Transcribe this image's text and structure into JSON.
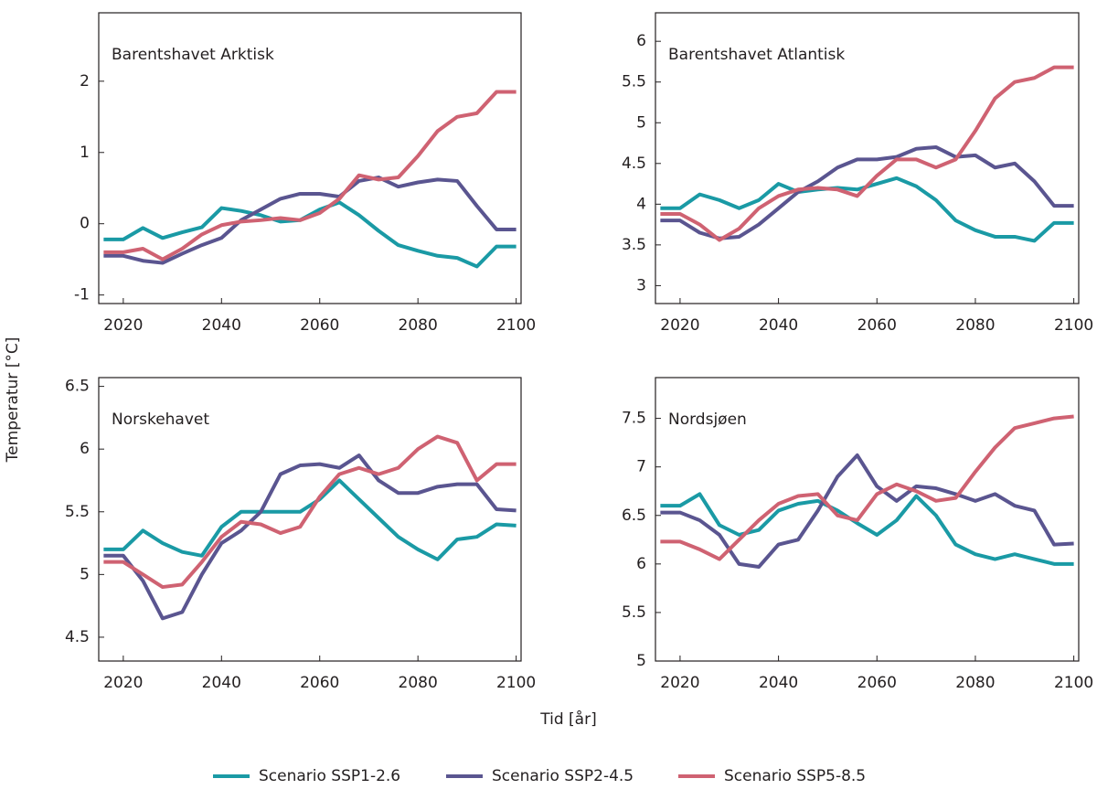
{
  "figure": {
    "xlabel": "Tid [år]",
    "ylabel": "Temperatur [°C]"
  },
  "chart_data": [
    {
      "type": "line",
      "title": "Barentshavet Arktisk",
      "x": [
        2016,
        2020,
        2024,
        2028,
        2032,
        2036,
        2040,
        2044,
        2048,
        2052,
        2056,
        2060,
        2064,
        2068,
        2072,
        2076,
        2080,
        2084,
        2088,
        2092,
        2096,
        2100
      ],
      "xlim": [
        2015,
        2101
      ],
      "xticks": [
        2020,
        2040,
        2060,
        2080,
        2100
      ],
      "ylim": [
        -1.12,
        2.96
      ],
      "yticks": [
        -1,
        0,
        1,
        2
      ],
      "series": [
        {
          "name": "Scenario SSP1-2.6",
          "color": "#1a9aa5",
          "values": [
            -0.22,
            -0.22,
            -0.06,
            -0.2,
            -0.12,
            -0.05,
            0.22,
            0.18,
            0.12,
            0.03,
            0.05,
            0.2,
            0.3,
            0.12,
            -0.1,
            -0.3,
            -0.38,
            -0.45,
            -0.48,
            -0.6,
            -0.32,
            -0.32
          ]
        },
        {
          "name": "Scenario SSP2-4.5",
          "color": "#5a5590",
          "values": [
            -0.45,
            -0.45,
            -0.52,
            -0.55,
            -0.42,
            -0.3,
            -0.2,
            0.05,
            0.2,
            0.35,
            0.42,
            0.42,
            0.38,
            0.6,
            0.65,
            0.52,
            0.58,
            0.62,
            0.6,
            0.25,
            -0.08,
            -0.08
          ]
        },
        {
          "name": "Scenario SSP5-8.5",
          "color": "#cf6272",
          "values": [
            -0.4,
            -0.4,
            -0.35,
            -0.5,
            -0.35,
            -0.15,
            -0.02,
            0.03,
            0.05,
            0.08,
            0.05,
            0.15,
            0.35,
            0.68,
            0.62,
            0.65,
            0.95,
            1.3,
            1.5,
            1.55,
            1.85,
            1.85
          ]
        }
      ]
    },
    {
      "type": "line",
      "title": "Barentshavet Atlantisk",
      "x": [
        2016,
        2020,
        2024,
        2028,
        2032,
        2036,
        2040,
        2044,
        2048,
        2052,
        2056,
        2060,
        2064,
        2068,
        2072,
        2076,
        2080,
        2084,
        2088,
        2092,
        2096,
        2100
      ],
      "xlim": [
        2015,
        2101
      ],
      "xticks": [
        2020,
        2040,
        2060,
        2080,
        2100
      ],
      "ylim": [
        2.78,
        6.35
      ],
      "yticks": [
        3,
        3.5,
        4,
        4.5,
        5,
        5.5,
        6
      ],
      "series": [
        {
          "name": "Scenario SSP1-2.6",
          "color": "#1a9aa5",
          "values": [
            3.95,
            3.95,
            4.12,
            4.05,
            3.95,
            4.05,
            4.25,
            4.15,
            4.18,
            4.2,
            4.18,
            4.25,
            4.32,
            4.22,
            4.05,
            3.8,
            3.68,
            3.6,
            3.6,
            3.55,
            3.77,
            3.77
          ]
        },
        {
          "name": "Scenario SSP2-4.5",
          "color": "#5a5590",
          "values": [
            3.8,
            3.8,
            3.65,
            3.58,
            3.6,
            3.75,
            3.95,
            4.15,
            4.28,
            4.45,
            4.55,
            4.55,
            4.58,
            4.68,
            4.7,
            4.58,
            4.6,
            4.45,
            4.5,
            4.28,
            3.98,
            3.98
          ]
        },
        {
          "name": "Scenario SSP5-8.5",
          "color": "#cf6272",
          "values": [
            3.88,
            3.88,
            3.75,
            3.56,
            3.7,
            3.95,
            4.1,
            4.18,
            4.2,
            4.18,
            4.1,
            4.35,
            4.55,
            4.55,
            4.45,
            4.55,
            4.9,
            5.3,
            5.5,
            5.55,
            5.68,
            5.68
          ]
        }
      ]
    },
    {
      "type": "line",
      "title": "Norskehavet",
      "x": [
        2016,
        2020,
        2024,
        2028,
        2032,
        2036,
        2040,
        2044,
        2048,
        2052,
        2056,
        2060,
        2064,
        2068,
        2072,
        2076,
        2080,
        2084,
        2088,
        2092,
        2096,
        2100
      ],
      "xlim": [
        2015,
        2101
      ],
      "xticks": [
        2020,
        2040,
        2060,
        2080,
        2100
      ],
      "ylim": [
        4.31,
        6.57
      ],
      "yticks": [
        4.5,
        5,
        5.5,
        6,
        6.5
      ],
      "series": [
        {
          "name": "Scenario SSP1-2.6",
          "color": "#1a9aa5",
          "values": [
            5.2,
            5.2,
            5.35,
            5.25,
            5.18,
            5.15,
            5.38,
            5.5,
            5.5,
            5.5,
            5.5,
            5.6,
            5.75,
            5.6,
            5.45,
            5.3,
            5.2,
            5.12,
            5.28,
            5.3,
            5.4,
            5.39
          ]
        },
        {
          "name": "Scenario SSP2-4.5",
          "color": "#5a5590",
          "values": [
            5.15,
            5.15,
            4.95,
            4.65,
            4.7,
            5.0,
            5.25,
            5.35,
            5.5,
            5.8,
            5.87,
            5.88,
            5.85,
            5.95,
            5.75,
            5.65,
            5.65,
            5.7,
            5.72,
            5.72,
            5.52,
            5.51
          ]
        },
        {
          "name": "Scenario SSP5-8.5",
          "color": "#cf6272",
          "values": [
            5.1,
            5.1,
            5.0,
            4.9,
            4.92,
            5.1,
            5.3,
            5.42,
            5.4,
            5.33,
            5.38,
            5.62,
            5.8,
            5.85,
            5.8,
            5.85,
            6.0,
            6.1,
            6.05,
            5.75,
            5.88,
            5.88
          ]
        }
      ]
    },
    {
      "type": "line",
      "title": "Nordsjøen",
      "x": [
        2016,
        2020,
        2024,
        2028,
        2032,
        2036,
        2040,
        2044,
        2048,
        2052,
        2056,
        2060,
        2064,
        2068,
        2072,
        2076,
        2080,
        2084,
        2088,
        2092,
        2096,
        2100
      ],
      "xlim": [
        2015,
        2101
      ],
      "xticks": [
        2020,
        2040,
        2060,
        2080,
        2100
      ],
      "ylim": [
        5,
        7.92
      ],
      "yticks": [
        5,
        5.5,
        6,
        6.5,
        7,
        7.5
      ],
      "series": [
        {
          "name": "Scenario SSP1-2.6",
          "color": "#1a9aa5",
          "values": [
            6.6,
            6.6,
            6.72,
            6.4,
            6.3,
            6.35,
            6.55,
            6.62,
            6.65,
            6.55,
            6.42,
            6.3,
            6.45,
            6.7,
            6.5,
            6.2,
            6.1,
            6.05,
            6.1,
            6.05,
            6.0,
            6.0
          ]
        },
        {
          "name": "Scenario SSP2-4.5",
          "color": "#5a5590",
          "values": [
            6.53,
            6.53,
            6.45,
            6.3,
            6.0,
            5.97,
            6.2,
            6.25,
            6.55,
            6.9,
            7.12,
            6.8,
            6.65,
            6.8,
            6.78,
            6.72,
            6.65,
            6.72,
            6.6,
            6.55,
            6.2,
            6.21
          ]
        },
        {
          "name": "Scenario SSP5-8.5",
          "color": "#cf6272",
          "values": [
            6.23,
            6.23,
            6.15,
            6.05,
            6.25,
            6.45,
            6.62,
            6.7,
            6.72,
            6.5,
            6.45,
            6.72,
            6.82,
            6.75,
            6.65,
            6.68,
            6.95,
            7.2,
            7.4,
            7.45,
            7.5,
            7.52
          ]
        }
      ]
    }
  ]
}
